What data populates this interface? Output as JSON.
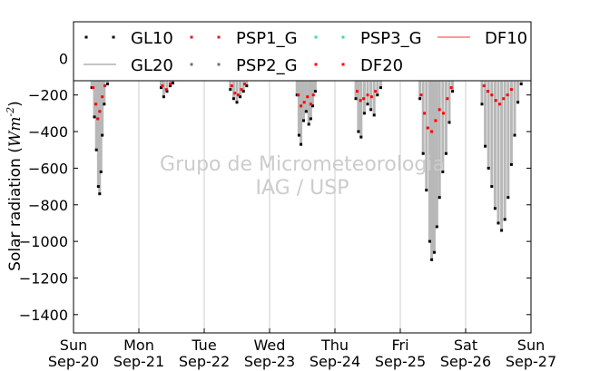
{
  "chart_data": {
    "type": "scatter",
    "ylabel": "Solar radiation (Wm^-2)",
    "ylabel_main": "Solar radiation (",
    "ylabel_unit": "Wm",
    "ylabel_exp": "-2",
    "ylabel_close": ")",
    "ylim": [
      -1500,
      200
    ],
    "yticks": [
      0,
      -200,
      -400,
      -600,
      -800,
      -1000,
      -1200,
      -1400
    ],
    "xlim": [
      0,
      7
    ],
    "xticks": [
      {
        "x": 0,
        "day": "Sun",
        "date": "Sep-20"
      },
      {
        "x": 1,
        "day": "Mon",
        "date": "Sep-21"
      },
      {
        "x": 2,
        "day": "Tue",
        "date": "Sep-22"
      },
      {
        "x": 3,
        "day": "Wed",
        "date": "Sep-23"
      },
      {
        "x": 4,
        "day": "Thu",
        "date": "Sep-24"
      },
      {
        "x": 5,
        "day": "Fri",
        "date": "Sep-25"
      },
      {
        "x": 6,
        "day": "Sat",
        "date": "Sep-26"
      },
      {
        "x": 7,
        "day": "Sun",
        "date": "Sep-27"
      }
    ],
    "watermark": [
      "Grupo de Micrometeorologia",
      "IAG / USP"
    ],
    "legend_position": "top",
    "legend": [
      {
        "name": "GL10",
        "style": "dots",
        "color": "#000000"
      },
      {
        "name": "PSP1_G",
        "style": "dots",
        "color": "#d62020"
      },
      {
        "name": "PSP3_G",
        "style": "dots",
        "color": "#3fd9b0"
      },
      {
        "name": "DF10",
        "style": "line",
        "color": "#ff7777"
      },
      {
        "name": "GL20",
        "style": "line",
        "color": "#b0b0b0"
      },
      {
        "name": "PSP2_G",
        "style": "dots",
        "color": "#707070"
      },
      {
        "name": "DF20",
        "style": "dots",
        "color": "#ff0000"
      }
    ],
    "series": [
      {
        "name": "GL10",
        "color": "#000000",
        "points": [
          [
            0.28,
            -160
          ],
          [
            0.32,
            -320
          ],
          [
            0.35,
            -500
          ],
          [
            0.38,
            -700
          ],
          [
            0.4,
            -740
          ],
          [
            0.42,
            -620
          ],
          [
            0.44,
            -420
          ],
          [
            0.47,
            -250
          ],
          [
            0.52,
            -140
          ],
          [
            1.34,
            -160
          ],
          [
            1.38,
            -210
          ],
          [
            1.43,
            -180
          ],
          [
            1.48,
            -150
          ],
          [
            1.52,
            -135
          ],
          [
            2.4,
            -170
          ],
          [
            2.45,
            -220
          ],
          [
            2.5,
            -240
          ],
          [
            2.55,
            -210
          ],
          [
            2.6,
            -180
          ],
          [
            2.65,
            -150
          ],
          [
            3.42,
            -200
          ],
          [
            3.45,
            -420
          ],
          [
            3.48,
            -470
          ],
          [
            3.52,
            -340
          ],
          [
            3.56,
            -290
          ],
          [
            3.6,
            -360
          ],
          [
            3.63,
            -330
          ],
          [
            3.66,
            -260
          ],
          [
            3.7,
            -180
          ],
          [
            4.32,
            -220
          ],
          [
            4.36,
            -400
          ],
          [
            4.4,
            -430
          ],
          [
            4.45,
            -300
          ],
          [
            4.5,
            -250
          ],
          [
            4.55,
            -280
          ],
          [
            4.6,
            -310
          ],
          [
            4.65,
            -200
          ],
          [
            4.7,
            -160
          ],
          [
            5.3,
            -220
          ],
          [
            5.35,
            -520
          ],
          [
            5.4,
            -720
          ],
          [
            5.45,
            -1000
          ],
          [
            5.48,
            -1100
          ],
          [
            5.52,
            -1060
          ],
          [
            5.56,
            -920
          ],
          [
            5.6,
            -760
          ],
          [
            5.65,
            -620
          ],
          [
            5.7,
            -520
          ],
          [
            5.75,
            -350
          ],
          [
            5.8,
            -180
          ],
          [
            6.25,
            -250
          ],
          [
            6.3,
            -480
          ],
          [
            6.35,
            -600
          ],
          [
            6.4,
            -700
          ],
          [
            6.45,
            -820
          ],
          [
            6.5,
            -900
          ],
          [
            6.55,
            -940
          ],
          [
            6.6,
            -880
          ],
          [
            6.65,
            -760
          ],
          [
            6.7,
            -580
          ],
          [
            6.75,
            -420
          ],
          [
            6.8,
            -240
          ],
          [
            6.85,
            -140
          ]
        ]
      },
      {
        "name": "DF20",
        "color": "#ff0000",
        "points": [
          [
            0.3,
            -160
          ],
          [
            0.34,
            -250
          ],
          [
            0.37,
            -330
          ],
          [
            0.4,
            -290
          ],
          [
            0.44,
            -210
          ],
          [
            0.48,
            -150
          ],
          [
            1.36,
            -150
          ],
          [
            1.42,
            -170
          ],
          [
            1.48,
            -140
          ],
          [
            2.42,
            -150
          ],
          [
            2.47,
            -190
          ],
          [
            2.52,
            -200
          ],
          [
            2.57,
            -170
          ],
          [
            2.62,
            -140
          ],
          [
            3.44,
            -200
          ],
          [
            3.48,
            -260
          ],
          [
            3.53,
            -240
          ],
          [
            3.58,
            -210
          ],
          [
            3.63,
            -250
          ],
          [
            3.67,
            -200
          ],
          [
            4.34,
            -180
          ],
          [
            4.39,
            -230
          ],
          [
            4.44,
            -220
          ],
          [
            4.5,
            -200
          ],
          [
            4.56,
            -210
          ],
          [
            4.62,
            -180
          ],
          [
            5.32,
            -200
          ],
          [
            5.37,
            -300
          ],
          [
            5.42,
            -380
          ],
          [
            5.48,
            -400
          ],
          [
            5.54,
            -340
          ],
          [
            5.6,
            -280
          ],
          [
            5.66,
            -300
          ],
          [
            5.72,
            -220
          ],
          [
            5.78,
            -160
          ],
          [
            6.28,
            -150
          ],
          [
            6.34,
            -180
          ],
          [
            6.4,
            -200
          ],
          [
            6.46,
            -230
          ],
          [
            6.52,
            -250
          ],
          [
            6.58,
            -220
          ],
          [
            6.64,
            -200
          ],
          [
            6.7,
            -170
          ]
        ]
      }
    ]
  }
}
